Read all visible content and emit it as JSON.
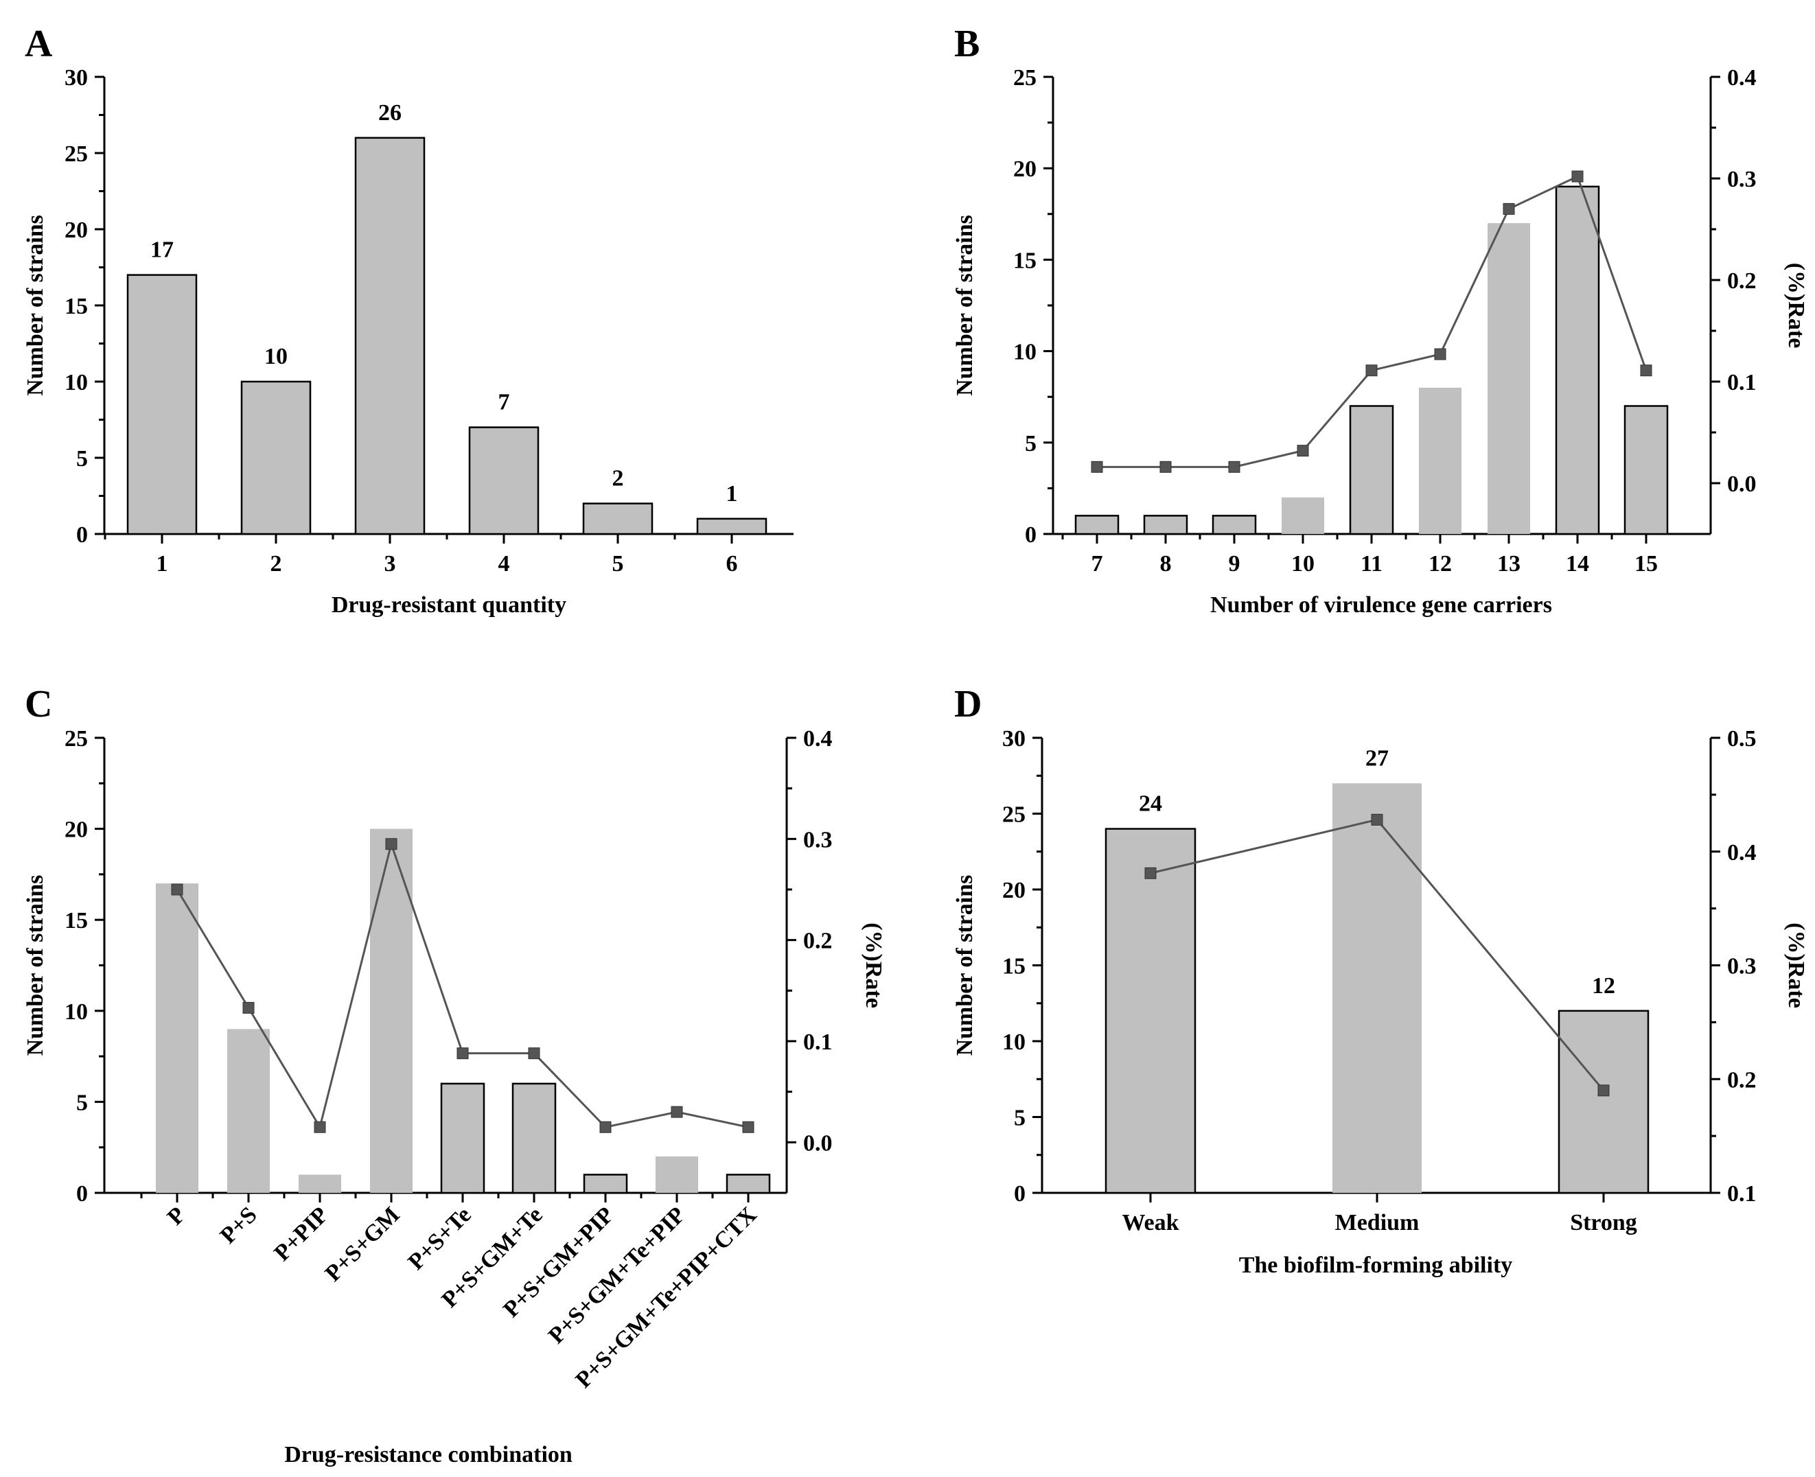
{
  "chart_data": [
    {
      "id": "A",
      "panel": "A",
      "type": "bar",
      "categories": [
        "1",
        "2",
        "3",
        "4",
        "5",
        "6"
      ],
      "values": [
        17,
        10,
        26,
        7,
        2,
        1
      ],
      "data_labels": [
        "17",
        "10",
        "26",
        "7",
        "2",
        "1"
      ],
      "xlabel": "Drug-resistant quantity",
      "ylabel": "Number of strains",
      "ylim": [
        0,
        30
      ],
      "yticks": [
        0,
        5,
        10,
        15,
        20,
        25,
        30
      ]
    },
    {
      "id": "B",
      "panel": "B",
      "type": "bar",
      "categories": [
        "7",
        "8",
        "9",
        "10",
        "11",
        "12",
        "13",
        "14",
        "15"
      ],
      "values": [
        1,
        1,
        1,
        2,
        7,
        8,
        17,
        19,
        7
      ],
      "xlabel": "Number of virulence gene carriers",
      "ylabel": "Number of strains",
      "ylim": [
        0,
        25
      ],
      "yticks": [
        0,
        5,
        10,
        15,
        20,
        25
      ],
      "rate": {
        "label": "(%)Rate",
        "values": [
          0.016,
          0.016,
          0.016,
          0.032,
          0.111,
          0.127,
          0.27,
          0.302,
          0.111
        ],
        "ylim": [
          -0.05,
          0.4
        ],
        "yticks": [
          "0.0",
          "0.1",
          "0.2",
          "0.3",
          "0.4"
        ]
      }
    },
    {
      "id": "C",
      "panel": "C",
      "type": "bar",
      "categories": [
        "P",
        "P+S",
        "P+PIP",
        "P+S+GM",
        "P+S+Te",
        "P+S+GM+Te",
        "P+S+GM+PIP",
        "P+S+GM+Te+PIP",
        "P+S+GM+Te+PIP+CTX"
      ],
      "values": [
        17,
        9,
        1,
        20,
        6,
        6,
        1,
        2,
        1
      ],
      "xlabel": "Drug-resistance combination",
      "ylabel": "Number of strains",
      "ylim": [
        0,
        25
      ],
      "yticks": [
        0,
        5,
        10,
        15,
        20,
        25
      ],
      "rate": {
        "label": "(%)Rate",
        "values": [
          0.25,
          0.133,
          0.015,
          0.295,
          0.088,
          0.088,
          0.015,
          0.03,
          0.015
        ],
        "ylim": [
          -0.05,
          0.4
        ],
        "yticks": [
          "0.0",
          "0.1",
          "0.2",
          "0.3",
          "0.4"
        ]
      }
    },
    {
      "id": "D",
      "panel": "D",
      "type": "bar",
      "categories": [
        "Weak",
        "Medium",
        "Strong"
      ],
      "values": [
        24,
        27,
        12
      ],
      "data_labels": [
        "24",
        "27",
        "12"
      ],
      "xlabel": "The biofilm-forming ability",
      "ylabel": "Number of strains",
      "ylim": [
        0,
        30
      ],
      "yticks": [
        0,
        5,
        10,
        15,
        20,
        25,
        30
      ],
      "rate": {
        "label": "(%)Rate",
        "values": [
          0.381,
          0.428,
          0.19
        ],
        "ylim": [
          0.1,
          0.5
        ],
        "yticks": [
          "0.1",
          "0.2",
          "0.3",
          "0.4",
          "0.5"
        ]
      }
    }
  ]
}
